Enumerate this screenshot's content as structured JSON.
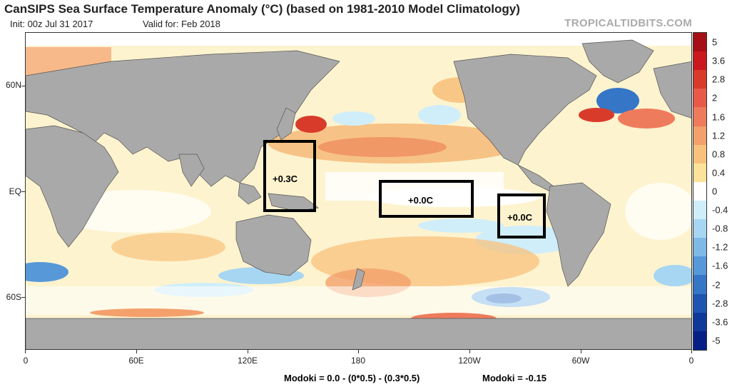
{
  "title": "CanSIPS Sea Surface Temperature Anomaly (°C) (based on 1981-2010 Model Climatology)",
  "init": "Init: 00z Jul 31 2017",
  "valid": "Valid for: Feb 2018",
  "brand": "TROPICALTIDBITS.COM",
  "lat_labels": [
    "60N",
    "EQ",
    "60S"
  ],
  "lon_labels": [
    "0",
    "60E",
    "120E",
    "180",
    "120W",
    "60W",
    "0"
  ],
  "boxes": [
    {
      "label": "+0.3C",
      "region": "western Pacific"
    },
    {
      "label": "+0.0C",
      "region": "central Pacific"
    },
    {
      "label": "+0.0C",
      "region": "eastern Pacific"
    }
  ],
  "colorbar": {
    "labels": [
      "5",
      "3.6",
      "2.8",
      "2",
      "1.6",
      "1.2",
      "0.8",
      "0.4",
      "0",
      "-0.4",
      "-0.8",
      "-1.2",
      "-1.6",
      "-2",
      "-2.8",
      "-3.6",
      "-5"
    ],
    "colors": [
      "#a50f15",
      "#cb181d",
      "#d93b2b",
      "#e8594a",
      "#ee7b5b",
      "#f3a06c",
      "#f8c27c",
      "#fde39a",
      "#ffffff",
      "#cfeefa",
      "#a7d6f2",
      "#7fb9e6",
      "#5798d8",
      "#3676c6",
      "#1f55b0",
      "#10379a",
      "#061f86"
    ]
  },
  "formula_left": "Modoki = 0.0 - (0*0.5) - (0.3*0.5)",
  "formula_right": "Modoki = -0.15"
}
